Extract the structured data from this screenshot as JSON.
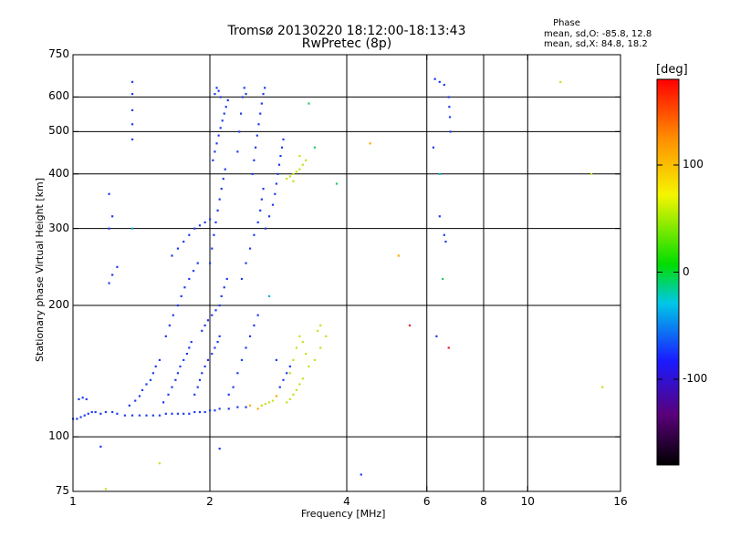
{
  "chart_data": {
    "type": "scatter",
    "title": "Tromsø 20130220 18:12:00-18:13:43",
    "subtitle": "RwPretec (8p)",
    "phase_box": {
      "heading": "Phase",
      "line1": "mean, sd,O: -85.8, 12.8",
      "line2": "mean, sd,X:  84.8, 18.2"
    },
    "xlabel": "Frequency [MHz]",
    "ylabel": "Stationary phase Virtual Height [km]",
    "x_scale": "log",
    "y_scale": "log",
    "xlim": [
      1,
      16
    ],
    "ylim": [
      75,
      750
    ],
    "x_ticks": [
      1,
      2,
      4,
      6,
      8,
      10,
      16
    ],
    "y_ticks": [
      75,
      100,
      200,
      300,
      400,
      500,
      600,
      750
    ],
    "x_tick_labels": [
      "1",
      "2",
      "4",
      "6",
      "8",
      "10",
      "16"
    ],
    "y_tick_labels": [
      "75",
      "100",
      "200",
      "300",
      "400",
      "500",
      "600",
      "750"
    ],
    "grid_x": [
      2,
      4,
      6,
      8,
      10
    ],
    "grid_y": [
      100,
      200,
      300,
      400,
      500,
      600
    ],
    "colorbar": {
      "unit": "[deg]",
      "range": [
        -180,
        180
      ],
      "ticks": [
        100,
        0,
        -100
      ],
      "tick_labels": [
        "100",
        "0",
        "-100"
      ]
    },
    "series": [
      {
        "color": "#1e3cf0",
        "points": [
          [
            1.0,
            110
          ],
          [
            1.02,
            110
          ],
          [
            1.04,
            111
          ],
          [
            1.06,
            112
          ],
          [
            1.08,
            113
          ],
          [
            1.1,
            114
          ],
          [
            1.12,
            114
          ],
          [
            1.15,
            113
          ],
          [
            1.18,
            114
          ],
          [
            1.22,
            114
          ],
          [
            1.25,
            113
          ],
          [
            1.3,
            112
          ],
          [
            1.35,
            112
          ],
          [
            1.4,
            112
          ],
          [
            1.45,
            112
          ],
          [
            1.5,
            112
          ],
          [
            1.55,
            112
          ],
          [
            1.6,
            113
          ],
          [
            1.65,
            113
          ],
          [
            1.7,
            113
          ],
          [
            1.75,
            113
          ],
          [
            1.8,
            113
          ],
          [
            1.85,
            114
          ],
          [
            1.9,
            114
          ],
          [
            1.95,
            114
          ],
          [
            2.0,
            115
          ],
          [
            2.05,
            115
          ],
          [
            2.1,
            116
          ],
          [
            2.2,
            116
          ],
          [
            2.3,
            117
          ],
          [
            2.4,
            117
          ],
          [
            1.03,
            122
          ],
          [
            1.05,
            123
          ],
          [
            1.07,
            122
          ],
          [
            1.33,
            118
          ],
          [
            1.37,
            121
          ],
          [
            1.4,
            124
          ],
          [
            1.42,
            128
          ],
          [
            1.45,
            132
          ],
          [
            1.48,
            135
          ],
          [
            1.5,
            140
          ],
          [
            1.52,
            145
          ],
          [
            1.55,
            150
          ],
          [
            1.58,
            120
          ],
          [
            1.62,
            125
          ],
          [
            1.65,
            130
          ],
          [
            1.68,
            135
          ],
          [
            1.7,
            140
          ],
          [
            1.72,
            145
          ],
          [
            1.75,
            150
          ],
          [
            1.78,
            155
          ],
          [
            1.8,
            160
          ],
          [
            1.82,
            165
          ],
          [
            1.6,
            170
          ],
          [
            1.63,
            180
          ],
          [
            1.66,
            190
          ],
          [
            1.7,
            200
          ],
          [
            1.73,
            210
          ],
          [
            1.76,
            220
          ],
          [
            1.8,
            230
          ],
          [
            1.84,
            240
          ],
          [
            1.88,
            250
          ],
          [
            1.65,
            260
          ],
          [
            1.7,
            270
          ],
          [
            1.75,
            280
          ],
          [
            1.8,
            290
          ],
          [
            1.85,
            300
          ],
          [
            1.9,
            305
          ],
          [
            1.95,
            310
          ],
          [
            2.0,
            315
          ],
          [
            1.85,
            125
          ],
          [
            1.88,
            130
          ],
          [
            1.9,
            135
          ],
          [
            1.92,
            140
          ],
          [
            1.95,
            145
          ],
          [
            1.98,
            150
          ],
          [
            2.02,
            155
          ],
          [
            2.05,
            160
          ],
          [
            2.08,
            165
          ],
          [
            2.1,
            170
          ],
          [
            1.92,
            175
          ],
          [
            1.95,
            180
          ],
          [
            1.98,
            185
          ],
          [
            2.02,
            190
          ],
          [
            2.06,
            195
          ],
          [
            2.1,
            200
          ],
          [
            2.12,
            210
          ],
          [
            2.15,
            220
          ],
          [
            2.18,
            230
          ],
          [
            2.0,
            250
          ],
          [
            2.02,
            270
          ],
          [
            2.04,
            290
          ],
          [
            2.06,
            310
          ],
          [
            2.08,
            330
          ],
          [
            2.1,
            350
          ],
          [
            2.12,
            370
          ],
          [
            2.14,
            390
          ],
          [
            2.16,
            410
          ],
          [
            2.03,
            430
          ],
          [
            2.05,
            450
          ],
          [
            2.07,
            470
          ],
          [
            2.09,
            490
          ],
          [
            2.11,
            510
          ],
          [
            2.13,
            530
          ],
          [
            2.15,
            550
          ],
          [
            2.17,
            570
          ],
          [
            2.19,
            590
          ],
          [
            2.05,
            610
          ],
          [
            2.07,
            630
          ],
          [
            2.09,
            620
          ],
          [
            2.11,
            600
          ],
          [
            2.2,
            125
          ],
          [
            2.25,
            130
          ],
          [
            2.3,
            140
          ],
          [
            2.35,
            150
          ],
          [
            2.4,
            160
          ],
          [
            2.45,
            170
          ],
          [
            2.5,
            180
          ],
          [
            2.55,
            190
          ],
          [
            2.35,
            230
          ],
          [
            2.4,
            250
          ],
          [
            2.45,
            270
          ],
          [
            2.5,
            290
          ],
          [
            2.55,
            310
          ],
          [
            2.58,
            330
          ],
          [
            2.6,
            350
          ],
          [
            2.62,
            370
          ],
          [
            2.48,
            400
          ],
          [
            2.5,
            430
          ],
          [
            2.52,
            460
          ],
          [
            2.54,
            490
          ],
          [
            2.56,
            520
          ],
          [
            2.58,
            550
          ],
          [
            2.6,
            580
          ],
          [
            2.62,
            610
          ],
          [
            2.64,
            630
          ],
          [
            2.3,
            450
          ],
          [
            2.32,
            500
          ],
          [
            2.34,
            550
          ],
          [
            2.36,
            600
          ],
          [
            2.38,
            630
          ],
          [
            2.4,
            610
          ],
          [
            2.65,
            300
          ],
          [
            2.7,
            320
          ],
          [
            2.75,
            340
          ],
          [
            2.78,
            360
          ],
          [
            2.8,
            380
          ],
          [
            2.82,
            400
          ],
          [
            2.84,
            420
          ],
          [
            2.86,
            440
          ],
          [
            2.88,
            460
          ],
          [
            2.9,
            480
          ],
          [
            2.85,
            130
          ],
          [
            2.9,
            135
          ],
          [
            2.95,
            140
          ],
          [
            3.0,
            145
          ],
          [
            2.8,
            150
          ],
          [
            1.2,
            225
          ],
          [
            1.22,
            235
          ],
          [
            1.25,
            245
          ],
          [
            1.2,
            300
          ],
          [
            1.22,
            320
          ],
          [
            1.2,
            360
          ],
          [
            1.35,
            650
          ],
          [
            1.35,
            610
          ],
          [
            1.35,
            560
          ],
          [
            1.35,
            520
          ],
          [
            1.35,
            480
          ],
          [
            6.25,
            660
          ],
          [
            6.4,
            650
          ],
          [
            6.55,
            640
          ],
          [
            6.7,
            600
          ],
          [
            6.72,
            570
          ],
          [
            6.74,
            540
          ],
          [
            6.76,
            500
          ],
          [
            6.2,
            460
          ],
          [
            6.4,
            320
          ],
          [
            6.55,
            290
          ],
          [
            6.6,
            280
          ],
          [
            1.15,
            95
          ],
          [
            2.1,
            94
          ],
          [
            4.3,
            82
          ],
          [
            6.3,
            170
          ]
        ]
      },
      {
        "color": "#c8e01e",
        "points": [
          [
            2.95,
            390
          ],
          [
            3.0,
            395
          ],
          [
            3.05,
            400
          ],
          [
            3.1,
            405
          ],
          [
            3.15,
            410
          ],
          [
            3.2,
            420
          ],
          [
            3.25,
            430
          ],
          [
            3.05,
            385
          ],
          [
            3.15,
            440
          ],
          [
            2.95,
            120
          ],
          [
            3.0,
            122
          ],
          [
            3.05,
            125
          ],
          [
            3.1,
            128
          ],
          [
            3.15,
            132
          ],
          [
            3.2,
            136
          ],
          [
            3.0,
            140
          ],
          [
            3.05,
            150
          ],
          [
            3.1,
            160
          ],
          [
            3.15,
            170
          ],
          [
            3.2,
            165
          ],
          [
            3.25,
            155
          ],
          [
            3.3,
            145
          ],
          [
            3.4,
            150
          ],
          [
            3.5,
            160
          ],
          [
            3.6,
            170
          ],
          [
            3.5,
            180
          ],
          [
            3.45,
            175
          ],
          [
            2.6,
            118
          ],
          [
            2.65,
            119
          ],
          [
            2.7,
            120
          ],
          [
            2.75,
            121
          ],
          [
            1.18,
            76
          ],
          [
            1.55,
            87
          ],
          [
            11.8,
            650
          ],
          [
            13.8,
            400
          ],
          [
            14.6,
            130
          ]
        ]
      },
      {
        "color": "#ffaa00",
        "points": [
          [
            2.45,
            118
          ],
          [
            2.55,
            116
          ],
          [
            2.8,
            124
          ],
          [
            4.5,
            470
          ],
          [
            5.2,
            260
          ]
        ]
      },
      {
        "color": "#22cc66",
        "points": [
          [
            3.3,
            580
          ],
          [
            3.4,
            460
          ],
          [
            3.8,
            380
          ],
          [
            6.5,
            230
          ]
        ]
      },
      {
        "color": "#e02020",
        "points": [
          [
            5.5,
            180
          ],
          [
            6.7,
            160
          ]
        ]
      },
      {
        "color": "#00b4dc",
        "points": [
          [
            2.7,
            210
          ],
          [
            6.4,
            400
          ],
          [
            1.35,
            300
          ]
        ]
      }
    ]
  }
}
